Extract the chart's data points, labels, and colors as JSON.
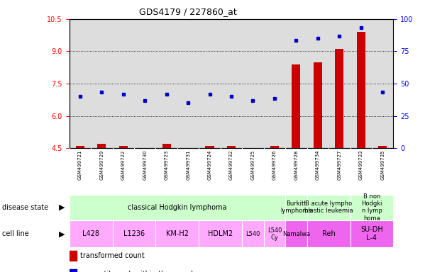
{
  "title": "GDS4179 / 227860_at",
  "samples": [
    "GSM499721",
    "GSM499729",
    "GSM499722",
    "GSM499730",
    "GSM499723",
    "GSM499731",
    "GSM499724",
    "GSM499732",
    "GSM499725",
    "GSM499726",
    "GSM499728",
    "GSM499734",
    "GSM499727",
    "GSM499733",
    "GSM499735"
  ],
  "transformed_count": [
    4.6,
    4.7,
    4.6,
    4.5,
    4.7,
    4.3,
    4.6,
    4.6,
    4.5,
    4.6,
    8.4,
    8.5,
    9.1,
    9.9,
    4.6
  ],
  "blue_dots_left_axis": [
    6.9,
    7.1,
    7.0,
    6.7,
    7.0,
    6.6,
    7.0,
    6.9,
    6.7,
    6.8,
    9.5,
    9.6,
    9.7,
    10.1,
    7.1
  ],
  "ylim_left": [
    4.5,
    10.5
  ],
  "yticks_left": [
    4.5,
    6.0,
    7.5,
    9.0,
    10.5
  ],
  "yticks_right": [
    0,
    25,
    50,
    75,
    100
  ],
  "disease_state_groups": [
    {
      "label": "classical Hodgkin lymphoma",
      "start": 0,
      "end": 10,
      "color": "#ccffcc"
    },
    {
      "label": "Burkitt\nlymphoma",
      "start": 10,
      "end": 11,
      "color": "#ccffcc"
    },
    {
      "label": "B acute lympho\nblastic leukemia",
      "start": 11,
      "end": 13,
      "color": "#ccffcc"
    },
    {
      "label": "B non\nHodgki\nn lymp\nhoma",
      "start": 13,
      "end": 15,
      "color": "#ccffcc"
    }
  ],
  "cell_line_groups": [
    {
      "label": "L428",
      "start": 0,
      "end": 2,
      "color": "#ffaaff"
    },
    {
      "label": "L1236",
      "start": 2,
      "end": 4,
      "color": "#ffaaff"
    },
    {
      "label": "KM-H2",
      "start": 4,
      "end": 6,
      "color": "#ffaaff"
    },
    {
      "label": "HDLM2",
      "start": 6,
      "end": 8,
      "color": "#ffaaff"
    },
    {
      "label": "L540",
      "start": 8,
      "end": 9,
      "color": "#ffaaff"
    },
    {
      "label": "L540\nCy",
      "start": 9,
      "end": 10,
      "color": "#ffaaff"
    },
    {
      "label": "Namalwa",
      "start": 10,
      "end": 11,
      "color": "#ee66ee"
    },
    {
      "label": "Reh",
      "start": 11,
      "end": 13,
      "color": "#ee66ee"
    },
    {
      "label": "SU-DH\nL-4",
      "start": 13,
      "end": 15,
      "color": "#ee66ee"
    }
  ],
  "bar_color": "#cc0000",
  "dot_color": "#0000cc",
  "bg_color": "#ffffff",
  "plot_bg_color": "#dddddd",
  "xticklabel_bg": "#cccccc"
}
